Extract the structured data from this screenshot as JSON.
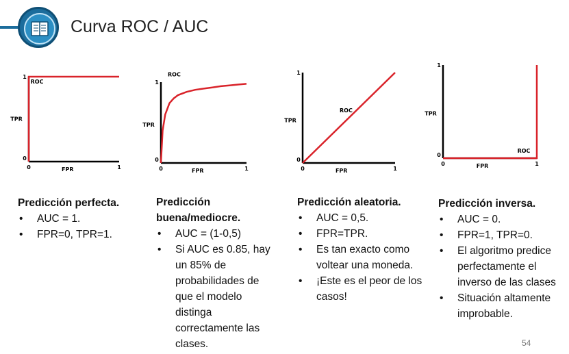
{
  "header": {
    "title": "Curva ROC / AUC",
    "icon": "book-icon",
    "accent": "#1c6d9c"
  },
  "chart_data": [
    {
      "type": "line",
      "title": "",
      "xlabel": "FPR",
      "ylabel": "TPR",
      "xlim": [
        0,
        1
      ],
      "ylim": [
        0,
        1
      ],
      "tick_labels": {
        "origin": "0",
        "x_end": "1",
        "y_end": "1"
      },
      "series": [
        {
          "name": "ROC",
          "x": [
            0,
            0,
            1
          ],
          "y": [
            0,
            1,
            1
          ]
        }
      ],
      "curve_color": "#d9232a"
    },
    {
      "type": "line",
      "title": "",
      "xlabel": "FPR",
      "ylabel": "TPR",
      "xlim": [
        0,
        1
      ],
      "ylim": [
        0,
        1
      ],
      "tick_labels": {
        "origin": "0",
        "x_end": "1",
        "y_end": "1"
      },
      "series": [
        {
          "name": "ROC",
          "x": [
            0,
            0.02,
            0.05,
            0.1,
            0.15,
            0.2,
            0.3,
            0.4,
            0.5,
            0.6,
            0.7,
            0.8,
            0.9,
            1.0
          ],
          "y": [
            0,
            0.4,
            0.6,
            0.74,
            0.8,
            0.84,
            0.88,
            0.905,
            0.92,
            0.935,
            0.95,
            0.96,
            0.97,
            0.98
          ]
        }
      ],
      "curve_color": "#d9232a"
    },
    {
      "type": "line",
      "title": "",
      "xlabel": "FPR",
      "ylabel": "TPR",
      "xlim": [
        0,
        1
      ],
      "ylim": [
        0,
        1
      ],
      "tick_labels": {
        "origin": "0",
        "x_end": "1",
        "y_end": "1"
      },
      "series": [
        {
          "name": "ROC",
          "x": [
            0,
            1
          ],
          "y": [
            0,
            1
          ]
        }
      ],
      "curve_color": "#d9232a"
    },
    {
      "type": "line",
      "title": "",
      "xlabel": "FPR",
      "ylabel": "TPR",
      "xlim": [
        0,
        1
      ],
      "ylim": [
        0,
        1
      ],
      "tick_labels": {
        "origin": "0",
        "x_end": "1",
        "y_end": "1"
      },
      "series": [
        {
          "name": "ROC",
          "x": [
            0,
            1,
            1
          ],
          "y": [
            0,
            0,
            1
          ]
        }
      ],
      "curve_color": "#d9232a"
    }
  ],
  "panels": [
    {
      "title": "Predicción perfecta.",
      "bullets": [
        "AUC = 1.",
        "FPR=0, TPR=1."
      ]
    },
    {
      "title": "Predicción buena/mediocre.",
      "bullets": [
        "AUC = (1-0,5)",
        "Si AUC es 0.85, hay un 85% de probabilidades de que el modelo distinga correctamente las clases."
      ]
    },
    {
      "title": "Predicción aleatoria.",
      "bullets": [
        "AUC = 0,5.",
        "FPR=TPR.",
        "Es tan exacto como voltear una moneda.",
        "¡Este es el peor de los casos!"
      ]
    },
    {
      "title": "Predicción inversa.",
      "bullets": [
        "AUC = 0.",
        "FPR=1, TPR=0.",
        " El algoritmo predice perfectamente el inverso de las clases",
        "Situación altamente improbable."
      ]
    }
  ],
  "footer": {
    "page_number": "54"
  }
}
